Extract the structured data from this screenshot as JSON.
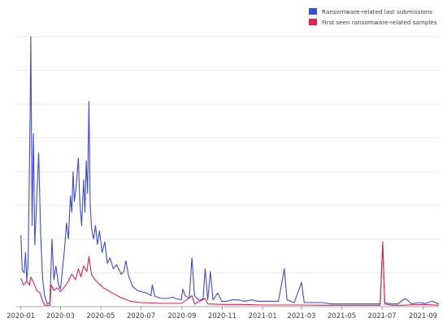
{
  "chart_data": {
    "type": "line",
    "title": "",
    "xlabel": "",
    "ylabel": "",
    "grid": "horizontal",
    "y_tick_labels_shown": false,
    "legend_position": "top-right",
    "xlim": [
      "2019-12-25",
      "2021-09-25"
    ],
    "ylim": [
      0,
      1000
    ],
    "x_ticks": [
      "2020-01-01",
      "2020-03-01",
      "2020-05-01",
      "2020-07-01",
      "2020-09-01",
      "2020-11-01",
      "2021-01-01",
      "2021-03-01",
      "2021-05-01",
      "2021-07-01",
      "2021-09-01"
    ],
    "x_tick_labels": [
      "2020-01",
      "2020-03",
      "2020-05",
      "2020-07",
      "2020-09",
      "2020-11",
      "2021-01",
      "2021-03",
      "2021-05",
      "2021-07",
      "2021-09"
    ],
    "series": [
      {
        "name": "Ransomware-related last submissions",
        "color": "#3b4bdb",
        "points": [
          [
            "2020-01-01",
            265
          ],
          [
            "2020-01-03",
            135
          ],
          [
            "2020-01-06",
            125
          ],
          [
            "2020-01-08",
            200
          ],
          [
            "2020-01-10",
            95
          ],
          [
            "2020-01-12",
            160
          ],
          [
            "2020-01-15",
            720
          ],
          [
            "2020-01-16",
            1000
          ],
          [
            "2020-01-18",
            300
          ],
          [
            "2020-01-20",
            640
          ],
          [
            "2020-01-22",
            230
          ],
          [
            "2020-01-25",
            400
          ],
          [
            "2020-01-28",
            570
          ],
          [
            "2020-01-31",
            260
          ],
          [
            "2020-02-03",
            100
          ],
          [
            "2020-02-06",
            40
          ],
          [
            "2020-02-10",
            10
          ],
          [
            "2020-02-14",
            15
          ],
          [
            "2020-02-17",
            250
          ],
          [
            "2020-02-20",
            100
          ],
          [
            "2020-02-23",
            150
          ],
          [
            "2020-02-27",
            80
          ],
          [
            "2020-03-01",
            65
          ],
          [
            "2020-03-04",
            140
          ],
          [
            "2020-03-07",
            210
          ],
          [
            "2020-03-10",
            310
          ],
          [
            "2020-03-13",
            250
          ],
          [
            "2020-03-16",
            410
          ],
          [
            "2020-03-18",
            350
          ],
          [
            "2020-03-20",
            500
          ],
          [
            "2020-03-22",
            390
          ],
          [
            "2020-03-25",
            450
          ],
          [
            "2020-03-28",
            550
          ],
          [
            "2020-03-30",
            400
          ],
          [
            "2020-04-02",
            300
          ],
          [
            "2020-04-05",
            470
          ],
          [
            "2020-04-07",
            350
          ],
          [
            "2020-04-09",
            540
          ],
          [
            "2020-04-11",
            420
          ],
          [
            "2020-04-13",
            760
          ],
          [
            "2020-04-15",
            380
          ],
          [
            "2020-04-17",
            290
          ],
          [
            "2020-04-20",
            250
          ],
          [
            "2020-04-23",
            300
          ],
          [
            "2020-04-26",
            230
          ],
          [
            "2020-04-29",
            280
          ],
          [
            "2020-05-03",
            200
          ],
          [
            "2020-05-07",
            240
          ],
          [
            "2020-05-11",
            160
          ],
          [
            "2020-05-15",
            180
          ],
          [
            "2020-05-20",
            140
          ],
          [
            "2020-05-25",
            155
          ],
          [
            "2020-06-01",
            120
          ],
          [
            "2020-06-05",
            130
          ],
          [
            "2020-06-08",
            170
          ],
          [
            "2020-06-12",
            115
          ],
          [
            "2020-06-18",
            75
          ],
          [
            "2020-06-25",
            60
          ],
          [
            "2020-07-02",
            55
          ],
          [
            "2020-07-10",
            50
          ],
          [
            "2020-07-16",
            40
          ],
          [
            "2020-07-18",
            80
          ],
          [
            "2020-07-22",
            38
          ],
          [
            "2020-08-01",
            30
          ],
          [
            "2020-08-10",
            30
          ],
          [
            "2020-08-18",
            35
          ],
          [
            "2020-08-22",
            30
          ],
          [
            "2020-08-31",
            25
          ],
          [
            "2020-09-02",
            65
          ],
          [
            "2020-09-06",
            40
          ],
          [
            "2020-09-12",
            30
          ],
          [
            "2020-09-16",
            180
          ],
          [
            "2020-09-20",
            40
          ],
          [
            "2020-09-26",
            25
          ],
          [
            "2020-09-30",
            25
          ],
          [
            "2020-10-03",
            30
          ],
          [
            "2020-10-06",
            140
          ],
          [
            "2020-10-10",
            25
          ],
          [
            "2020-10-14",
            130
          ],
          [
            "2020-10-18",
            25
          ],
          [
            "2020-10-25",
            50
          ],
          [
            "2020-10-31",
            20
          ],
          [
            "2020-11-08",
            20
          ],
          [
            "2020-11-16",
            25
          ],
          [
            "2020-11-25",
            25
          ],
          [
            "2020-12-05",
            20
          ],
          [
            "2020-12-15",
            25
          ],
          [
            "2020-12-25",
            20
          ],
          [
            "2021-01-05",
            20
          ],
          [
            "2021-01-15",
            20
          ],
          [
            "2021-01-25",
            20
          ],
          [
            "2021-02-03",
            140
          ],
          [
            "2021-02-07",
            25
          ],
          [
            "2021-02-18",
            15
          ],
          [
            "2021-03-01",
            90
          ],
          [
            "2021-03-05",
            15
          ],
          [
            "2021-03-18",
            15
          ],
          [
            "2021-04-01",
            15
          ],
          [
            "2021-04-15",
            10
          ],
          [
            "2021-05-01",
            10
          ],
          [
            "2021-05-15",
            10
          ],
          [
            "2021-06-01",
            10
          ],
          [
            "2021-06-15",
            10
          ],
          [
            "2021-06-28",
            10
          ],
          [
            "2021-07-02",
            230
          ],
          [
            "2021-07-05",
            15
          ],
          [
            "2021-07-15",
            10
          ],
          [
            "2021-07-25",
            10
          ],
          [
            "2021-08-05",
            30
          ],
          [
            "2021-08-15",
            10
          ],
          [
            "2021-08-25",
            15
          ],
          [
            "2021-09-05",
            12
          ],
          [
            "2021-09-15",
            20
          ],
          [
            "2021-09-25",
            10
          ]
        ]
      },
      {
        "name": "First seen ransomware-related samples",
        "color": "#e8204a",
        "points": [
          [
            "2020-01-01",
            105
          ],
          [
            "2020-01-05",
            80
          ],
          [
            "2020-01-10",
            95
          ],
          [
            "2020-01-14",
            80
          ],
          [
            "2020-01-16",
            110
          ],
          [
            "2020-01-20",
            90
          ],
          [
            "2020-01-25",
            60
          ],
          [
            "2020-01-30",
            50
          ],
          [
            "2020-02-03",
            20
          ],
          [
            "2020-02-06",
            5
          ],
          [
            "2020-02-14",
            5
          ],
          [
            "2020-02-16",
            80
          ],
          [
            "2020-02-20",
            60
          ],
          [
            "2020-02-25",
            70
          ],
          [
            "2020-03-01",
            55
          ],
          [
            "2020-03-06",
            70
          ],
          [
            "2020-03-12",
            90
          ],
          [
            "2020-03-18",
            120
          ],
          [
            "2020-03-24",
            100
          ],
          [
            "2020-03-28",
            140
          ],
          [
            "2020-04-01",
            110
          ],
          [
            "2020-04-05",
            150
          ],
          [
            "2020-04-10",
            130
          ],
          [
            "2020-04-13",
            185
          ],
          [
            "2020-04-17",
            120
          ],
          [
            "2020-04-22",
            100
          ],
          [
            "2020-04-28",
            85
          ],
          [
            "2020-05-05",
            70
          ],
          [
            "2020-05-15",
            55
          ],
          [
            "2020-05-30",
            35
          ],
          [
            "2020-06-15",
            20
          ],
          [
            "2020-07-01",
            15
          ],
          [
            "2020-08-01",
            12
          ],
          [
            "2020-09-01",
            12
          ],
          [
            "2020-09-16",
            40
          ],
          [
            "2020-09-20",
            10
          ],
          [
            "2020-10-06",
            30
          ],
          [
            "2020-10-10",
            10
          ],
          [
            "2020-11-01",
            8
          ],
          [
            "2020-12-01",
            8
          ],
          [
            "2021-01-01",
            6
          ],
          [
            "2021-02-01",
            6
          ],
          [
            "2021-03-01",
            6
          ],
          [
            "2021-04-01",
            5
          ],
          [
            "2021-05-01",
            5
          ],
          [
            "2021-06-01",
            5
          ],
          [
            "2021-06-28",
            5
          ],
          [
            "2021-07-02",
            240
          ],
          [
            "2021-07-05",
            10
          ],
          [
            "2021-07-15",
            5
          ],
          [
            "2021-08-01",
            5
          ],
          [
            "2021-09-01",
            8
          ],
          [
            "2021-09-25",
            5
          ]
        ]
      }
    ]
  }
}
